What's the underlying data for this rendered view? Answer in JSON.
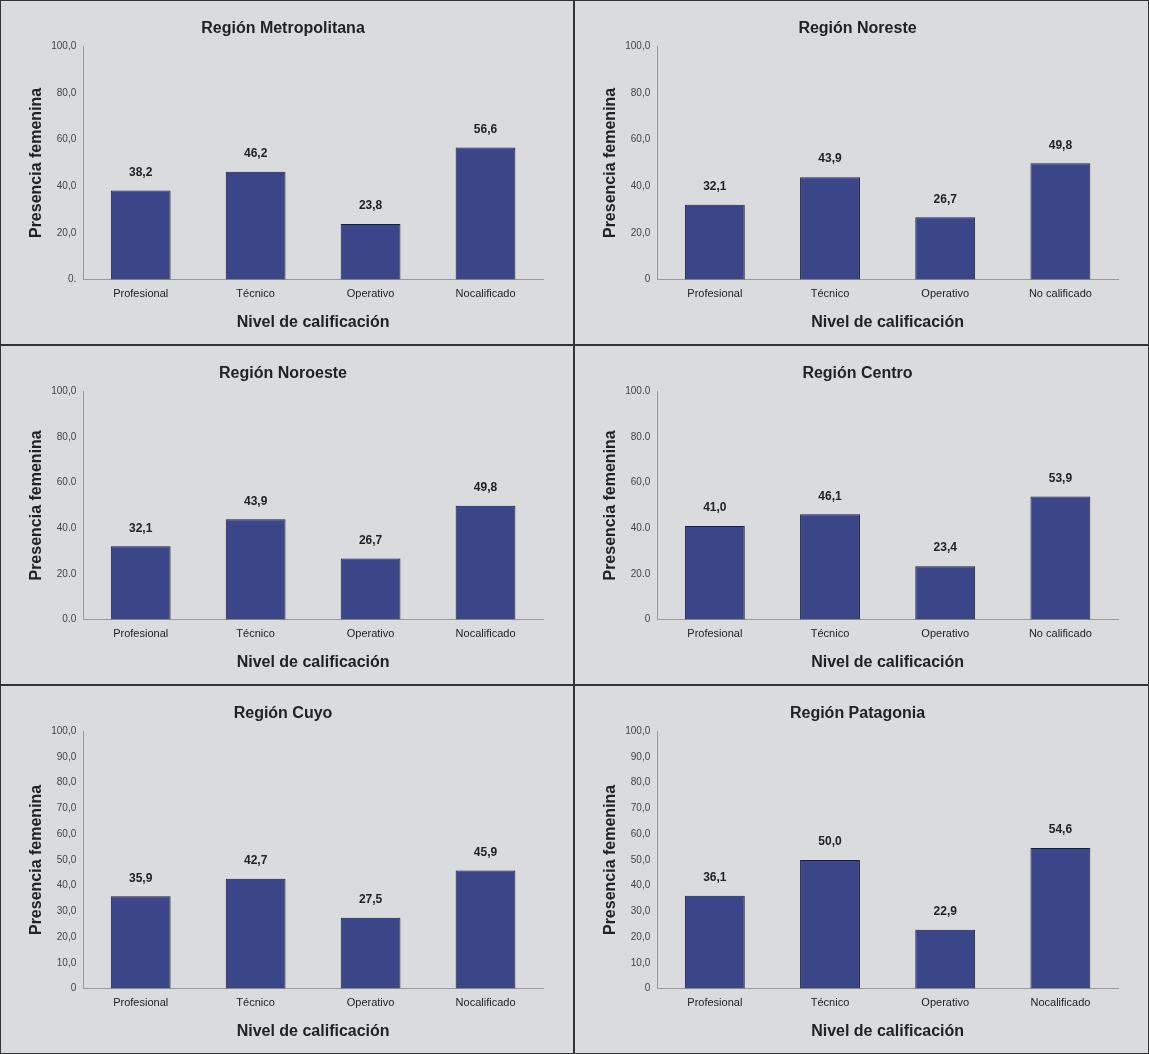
{
  "chart_data": [
    {
      "type": "bar",
      "title": "Región Metropolitana",
      "xlabel": "Nivel de calificación",
      "ylabel": "Presencia femenina",
      "categories": [
        "Profesional",
        "Técnico",
        "Operativo",
        "Nocalificado"
      ],
      "values": [
        38.2,
        46.2,
        23.8,
        56.6
      ],
      "value_labels": [
        "38,2",
        "46,2",
        "23,8",
        "56,6"
      ],
      "color": "#3b4688",
      "ylim": [
        0,
        100
      ],
      "yticks": [
        {
          "value": 0,
          "label": "0."
        },
        {
          "value": 20,
          "label": "20,0"
        },
        {
          "value": 40,
          "label": "40,0"
        },
        {
          "value": 60,
          "label": "60,0"
        },
        {
          "value": 80,
          "label": "80,0"
        },
        {
          "value": 100,
          "label": "100,0"
        }
      ],
      "grid": false,
      "legend": false
    },
    {
      "type": "bar",
      "title": "Región Noreste",
      "xlabel": "Nivel de calificación",
      "ylabel": "Presencia femenina",
      "categories": [
        "Profesional",
        "Técnico",
        "Operativo",
        "No calificado"
      ],
      "values": [
        32.1,
        43.9,
        26.7,
        49.8
      ],
      "value_labels": [
        "32,1",
        "43,9",
        "26,7",
        "49,8"
      ],
      "color": "#3b4688",
      "ylim": [
        0,
        100
      ],
      "yticks": [
        {
          "value": 0,
          "label": "0"
        },
        {
          "value": 20,
          "label": "20,0"
        },
        {
          "value": 40,
          "label": "40,0"
        },
        {
          "value": 60,
          "label": "60,0"
        },
        {
          "value": 80,
          "label": "80,0"
        },
        {
          "value": 100,
          "label": "100,0"
        }
      ],
      "grid": false,
      "legend": false
    },
    {
      "type": "bar",
      "title": "Región Noroeste",
      "xlabel": "Nivel de calificación",
      "ylabel": "Presencia femenina",
      "categories": [
        "Profesional",
        "Técnico",
        "Operativo",
        "Nocalificado"
      ],
      "values": [
        32.1,
        43.9,
        26.7,
        49.8
      ],
      "value_labels": [
        "32,1",
        "43,9",
        "26,7",
        "49,8"
      ],
      "color": "#3b4688",
      "ylim": [
        0,
        100
      ],
      "yticks": [
        {
          "value": 0,
          "label": "0.0"
        },
        {
          "value": 20,
          "label": "20.0"
        },
        {
          "value": 40,
          "label": "40.0"
        },
        {
          "value": 60,
          "label": "60.0"
        },
        {
          "value": 80,
          "label": "80,0"
        },
        {
          "value": 100,
          "label": "100,0"
        }
      ],
      "grid": false,
      "legend": false
    },
    {
      "type": "bar",
      "title": "Región Centro",
      "xlabel": "Nivel de calificación",
      "ylabel": "Presencia femenina",
      "categories": [
        "Profesional",
        "Técnico",
        "Operativo",
        "No calificado"
      ],
      "values": [
        41.0,
        46.1,
        23.4,
        53.9
      ],
      "value_labels": [
        "41,0",
        "46,1",
        "23,4",
        "53,9"
      ],
      "color": "#3b4688",
      "ylim": [
        0,
        100
      ],
      "yticks": [
        {
          "value": 0,
          "label": "0"
        },
        {
          "value": 20,
          "label": "20.0"
        },
        {
          "value": 40,
          "label": "40.0"
        },
        {
          "value": 60,
          "label": "60,0"
        },
        {
          "value": 80,
          "label": "80.0"
        },
        {
          "value": 100,
          "label": "100.0"
        }
      ],
      "grid": false,
      "legend": false
    },
    {
      "type": "bar",
      "title": "Región Cuyo",
      "xlabel": "Nivel de calificación",
      "ylabel": "Presencia femenina",
      "categories": [
        "Profesional",
        "Técnico",
        "Operativo",
        "Nocalificado"
      ],
      "values": [
        35.9,
        42.7,
        27.5,
        45.9
      ],
      "value_labels": [
        "35,9",
        "42,7",
        "27,5",
        "45,9"
      ],
      "color": "#3b4688",
      "ylim": [
        0,
        100
      ],
      "yticks": [
        {
          "value": 0,
          "label": "0"
        },
        {
          "value": 10,
          "label": "10,0"
        },
        {
          "value": 20,
          "label": "20,0"
        },
        {
          "value": 30,
          "label": "30,0"
        },
        {
          "value": 40,
          "label": "40,0"
        },
        {
          "value": 50,
          "label": "50,0"
        },
        {
          "value": 60,
          "label": "60,0"
        },
        {
          "value": 70,
          "label": "70,0"
        },
        {
          "value": 80,
          "label": "80,0"
        },
        {
          "value": 90,
          "label": "90,0"
        },
        {
          "value": 100,
          "label": "100,0"
        }
      ],
      "grid": false,
      "legend": false
    },
    {
      "type": "bar",
      "title": "Región Patagonia",
      "xlabel": "Nivel de calificación",
      "ylabel": "Presencia femenina",
      "categories": [
        "Profesional",
        "Técnico",
        "Operativo",
        "Nocalificado"
      ],
      "values": [
        36.1,
        50.0,
        22.9,
        54.6
      ],
      "value_labels": [
        "36,1",
        "50,0",
        "22,9",
        "54,6"
      ],
      "color": "#3b4688",
      "ylim": [
        0,
        100
      ],
      "yticks": [
        {
          "value": 0,
          "label": "0"
        },
        {
          "value": 10,
          "label": "10,0"
        },
        {
          "value": 20,
          "label": "20,0"
        },
        {
          "value": 30,
          "label": "30,0"
        },
        {
          "value": 40,
          "label": "40,0"
        },
        {
          "value": 50,
          "label": "50,0"
        },
        {
          "value": 60,
          "label": "60,0"
        },
        {
          "value": 70,
          "label": "70,0"
        },
        {
          "value": 80,
          "label": "80,0"
        },
        {
          "value": 90,
          "label": "90,0"
        },
        {
          "value": 100,
          "label": "100,0"
        }
      ],
      "grid": false,
      "legend": false
    }
  ]
}
